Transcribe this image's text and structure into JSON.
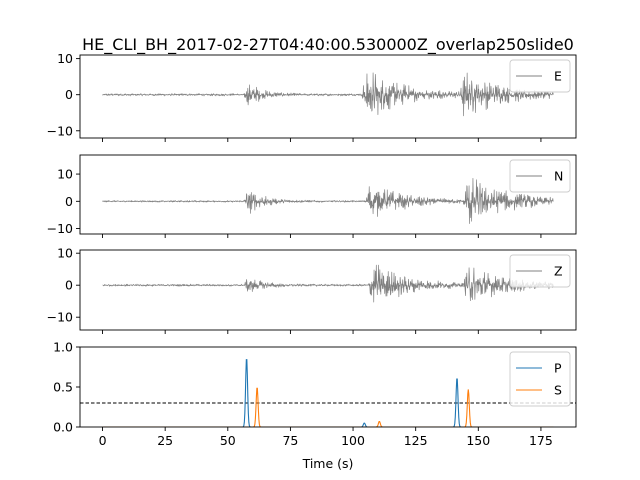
{
  "chart_data": {
    "type": "line",
    "title": "HE_CLI_BH_2017-02-27T04:40:00.530000Z_overlap250slide0",
    "xlabel": "Time (s)",
    "xlim": [
      -9,
      189
    ],
    "x_ticks": [
      0,
      25,
      50,
      75,
      100,
      125,
      150,
      175
    ],
    "grid": false,
    "legend_placement": "top-right",
    "panels": [
      {
        "name": "panel-e",
        "ylim": [
          -12,
          11
        ],
        "y_ticks": [
          -10,
          0,
          10
        ],
        "series": [
          {
            "name": "E",
            "color": "#808080",
            "x_range": [
              0,
              180
            ],
            "noise_amplitude": 0.35,
            "bursts": [
              {
                "t": 57.5,
                "amp": 4.5,
                "decay": 5
              },
              {
                "t": 104.5,
                "amp": 8.5,
                "decay": 14
              },
              {
                "t": 143.5,
                "amp": 6.5,
                "decay": 16
              }
            ]
          }
        ]
      },
      {
        "name": "panel-n",
        "ylim": [
          -12,
          17
        ],
        "y_ticks": [
          -10,
          0,
          10
        ],
        "series": [
          {
            "name": "N",
            "color": "#808080",
            "x_range": [
              0,
              180
            ],
            "noise_amplitude": 0.35,
            "bursts": [
              {
                "t": 57.5,
                "amp": 6,
                "decay": 6
              },
              {
                "t": 106,
                "amp": 7.5,
                "decay": 14
              },
              {
                "t": 145,
                "amp": 10,
                "decay": 16
              }
            ]
          }
        ]
      },
      {
        "name": "panel-z",
        "ylim": [
          -14,
          11
        ],
        "y_ticks": [
          -10,
          0,
          10
        ],
        "series": [
          {
            "name": "Z",
            "color": "#808080",
            "x_range": [
              0,
              180
            ],
            "noise_amplitude": 0.35,
            "bursts": [
              {
                "t": 57.5,
                "amp": 3,
                "decay": 6
              },
              {
                "t": 107,
                "amp": 8.5,
                "decay": 13
              },
              {
                "t": 145,
                "amp": 6.5,
                "decay": 16
              }
            ]
          }
        ]
      },
      {
        "name": "panel-prob",
        "ylim": [
          0,
          1.0
        ],
        "y_ticks": [
          0.0,
          0.5,
          1.0
        ],
        "threshold": 0.3,
        "series": [
          {
            "name": "P",
            "color": "#1f77b4",
            "x_range": [
              0,
              180
            ],
            "peaks": [
              {
                "t": 57.5,
                "h": 0.87
              },
              {
                "t": 104.5,
                "h": 0.05
              },
              {
                "t": 141.5,
                "h": 0.62
              }
            ]
          },
          {
            "name": "S",
            "color": "#ff7f0e",
            "x_range": [
              0,
              180
            ],
            "peaks": [
              {
                "t": 61.7,
                "h": 0.5
              },
              {
                "t": 110.5,
                "h": 0.07
              },
              {
                "t": 146,
                "h": 0.47
              }
            ]
          }
        ]
      }
    ]
  }
}
